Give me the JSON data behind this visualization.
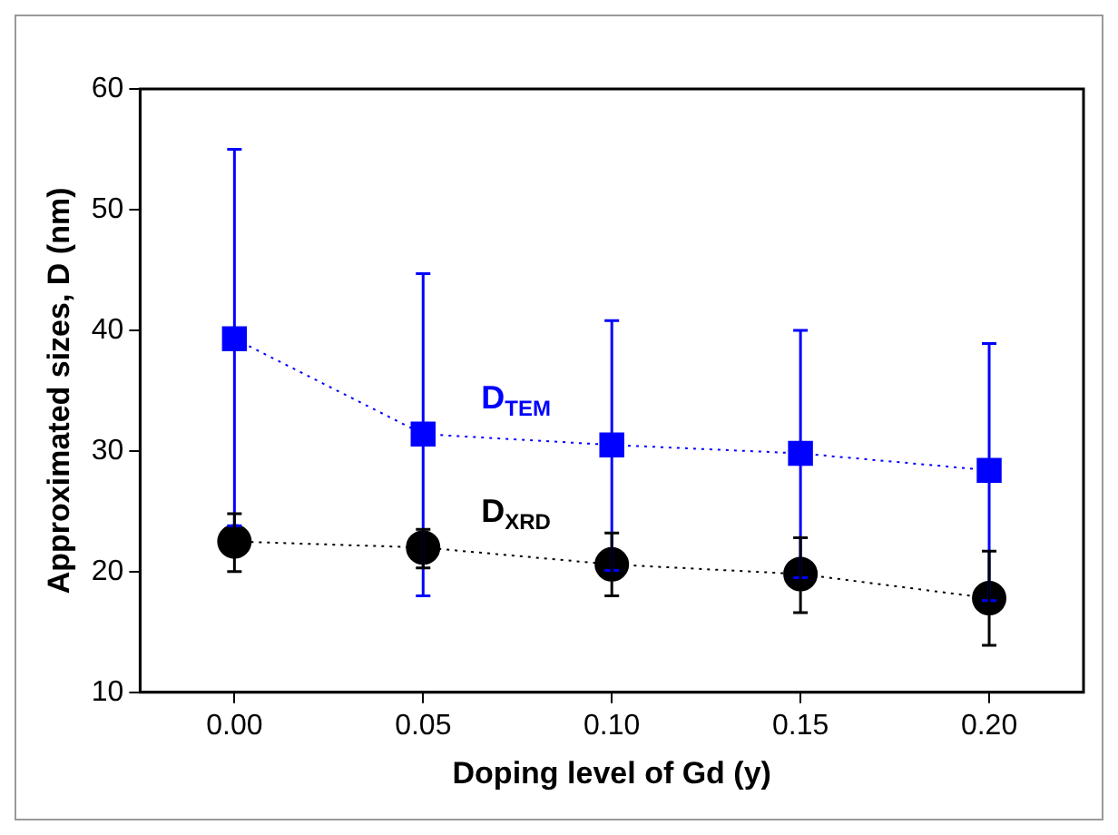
{
  "chart_data": {
    "type": "line",
    "xlabel": "Doping level of Gd (y)",
    "ylabel": "Approximated sizes, D (nm)",
    "x": [
      0,
      0.05,
      0.1,
      0.15,
      0.2
    ],
    "xlim": [
      -0.025,
      0.225
    ],
    "xticks": [
      {
        "value": 0,
        "label": "0.00"
      },
      {
        "value": 0.05,
        "label": "0.05"
      },
      {
        "value": 0.1,
        "label": "0.10"
      },
      {
        "value": 0.15,
        "label": "0.15"
      },
      {
        "value": 0.2,
        "label": "0.20"
      }
    ],
    "ylim": [
      10,
      60
    ],
    "yticks": [
      10,
      20,
      30,
      40,
      50,
      60
    ],
    "grid": false,
    "legend": false,
    "series": [
      {
        "name": "D$_{TEM}$",
        "color": "#0000ff",
        "marker": "square",
        "line_style": "dotted",
        "values": [
          39.3,
          31.4,
          30.5,
          29.8,
          28.4
        ],
        "errors": [
          [
            23.8,
            55.0
          ],
          [
            18.0,
            44.7
          ],
          [
            20.1,
            40.8
          ],
          [
            19.5,
            40.0
          ],
          [
            17.6,
            38.9
          ]
        ]
      },
      {
        "name": "D$_{XRD}$",
        "color": "#000000",
        "marker": "circle",
        "line_style": "dotted",
        "values": [
          22.5,
          22.0,
          20.6,
          19.8,
          17.8
        ],
        "errors": [
          [
            20.0,
            24.8
          ],
          [
            20.3,
            23.5
          ],
          [
            18.0,
            23.2
          ],
          [
            16.6,
            22.8
          ],
          [
            13.9,
            21.7
          ]
        ]
      }
    ]
  }
}
